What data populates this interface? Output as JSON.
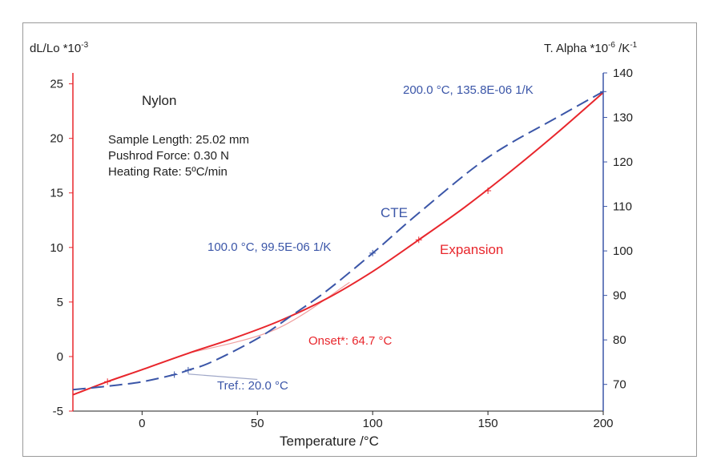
{
  "chart_data": {
    "type": "line",
    "title": "Nylon",
    "xlabel": "Temperature /°C",
    "xlim": [
      -30,
      200
    ],
    "x_ticks": [
      0,
      50,
      100,
      150,
      200
    ],
    "left_axis": {
      "label_main": "dL/Lo *10",
      "label_exp": "-3",
      "ylim": [
        -5,
        26
      ],
      "ticks": [
        -5,
        0,
        5,
        10,
        15,
        20,
        25
      ],
      "color": "#e8262c"
    },
    "right_axis": {
      "label_main": "T. Alpha *10",
      "label_exp1": "-6",
      "label_mid": " /K",
      "label_exp2": "-1",
      "ylim": [
        64,
        140
      ],
      "ticks": [
        70,
        80,
        90,
        100,
        110,
        120,
        130,
        140
      ],
      "color": "#3b56a8"
    },
    "info": {
      "sample_length": "Sample Length: 25.02 mm",
      "pushrod_force": "Pushrod Force: 0.30 N",
      "heating_rate": "Heating Rate: 5ºC/min"
    },
    "series": [
      {
        "name": "Expansion",
        "axis": "left",
        "color": "#e8262c",
        "style": "solid",
        "x": [
          -30,
          -15,
          0,
          20,
          40,
          60,
          80,
          100,
          120,
          140,
          160,
          180,
          200
        ],
        "y": [
          -3.5,
          -2.3,
          -1.2,
          0.3,
          1.7,
          3.3,
          5.3,
          7.8,
          10.7,
          13.7,
          17.0,
          20.5,
          24.2
        ]
      },
      {
        "name": "CTE",
        "axis": "right",
        "color": "#3b56a8",
        "style": "dashed",
        "x": [
          -30,
          -15,
          0,
          14,
          20,
          30,
          50,
          65,
          80,
          100,
          120,
          150,
          180,
          200
        ],
        "y": [
          68.8,
          69.6,
          70.6,
          72.2,
          73.2,
          75.0,
          80.3,
          85.5,
          91.0,
          99.5,
          108.5,
          121.0,
          130.0,
          135.8
        ]
      }
    ],
    "onset_tangent": {
      "color": "#f0a0a0",
      "x": [
        20,
        58,
        90
      ],
      "y": [
        0.3,
        2.5,
        6.8
      ]
    },
    "tref_line": {
      "color": "#a0a8c8",
      "x": [
        20,
        50
      ],
      "y": [
        -1.6,
        -2.1
      ]
    },
    "markers": [
      {
        "x": -15,
        "y": -2.3,
        "axis": "left",
        "color": "#e8262c"
      },
      {
        "x": 120,
        "y": 10.7,
        "axis": "left",
        "color": "#e8262c"
      },
      {
        "x": 150,
        "y": 15.2,
        "axis": "left",
        "color": "#e8262c"
      },
      {
        "x": 14,
        "y": 72.2,
        "axis": "right",
        "color": "#3b56a8"
      },
      {
        "x": 20,
        "y": 73.2,
        "axis": "right",
        "color": "#3b56a8"
      },
      {
        "x": 100,
        "y": 99.5,
        "axis": "right",
        "color": "#3b56a8"
      },
      {
        "x": 200,
        "y": 135.8,
        "axis": "right",
        "color": "#3b56a8"
      }
    ],
    "annotations": {
      "cte_label": "CTE",
      "expansion_label": "Expansion",
      "point_100": "100.0 °C, 99.5E-06 1/K",
      "point_200": "200.0 °C, 135.8E-06 1/K",
      "onset": "Onset*: 64.7 °C",
      "tref": "Tref.: 20.0 °C"
    }
  }
}
